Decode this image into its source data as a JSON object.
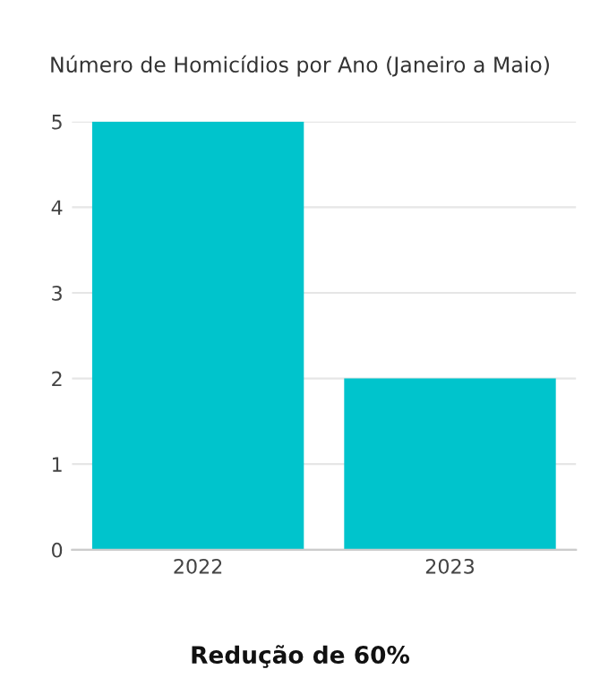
{
  "chart_data": {
    "type": "bar",
    "title": "Número de Homicídios por Ano (Janeiro a Maio)",
    "categories": [
      "2022",
      "2023"
    ],
    "values": [
      5,
      2
    ],
    "color": "#00c4cc",
    "ylim": [
      0,
      5
    ],
    "yticks": [
      0,
      1,
      2,
      3,
      4,
      5
    ],
    "grid": "y",
    "annotations": [
      "Redução de 60%"
    ]
  }
}
